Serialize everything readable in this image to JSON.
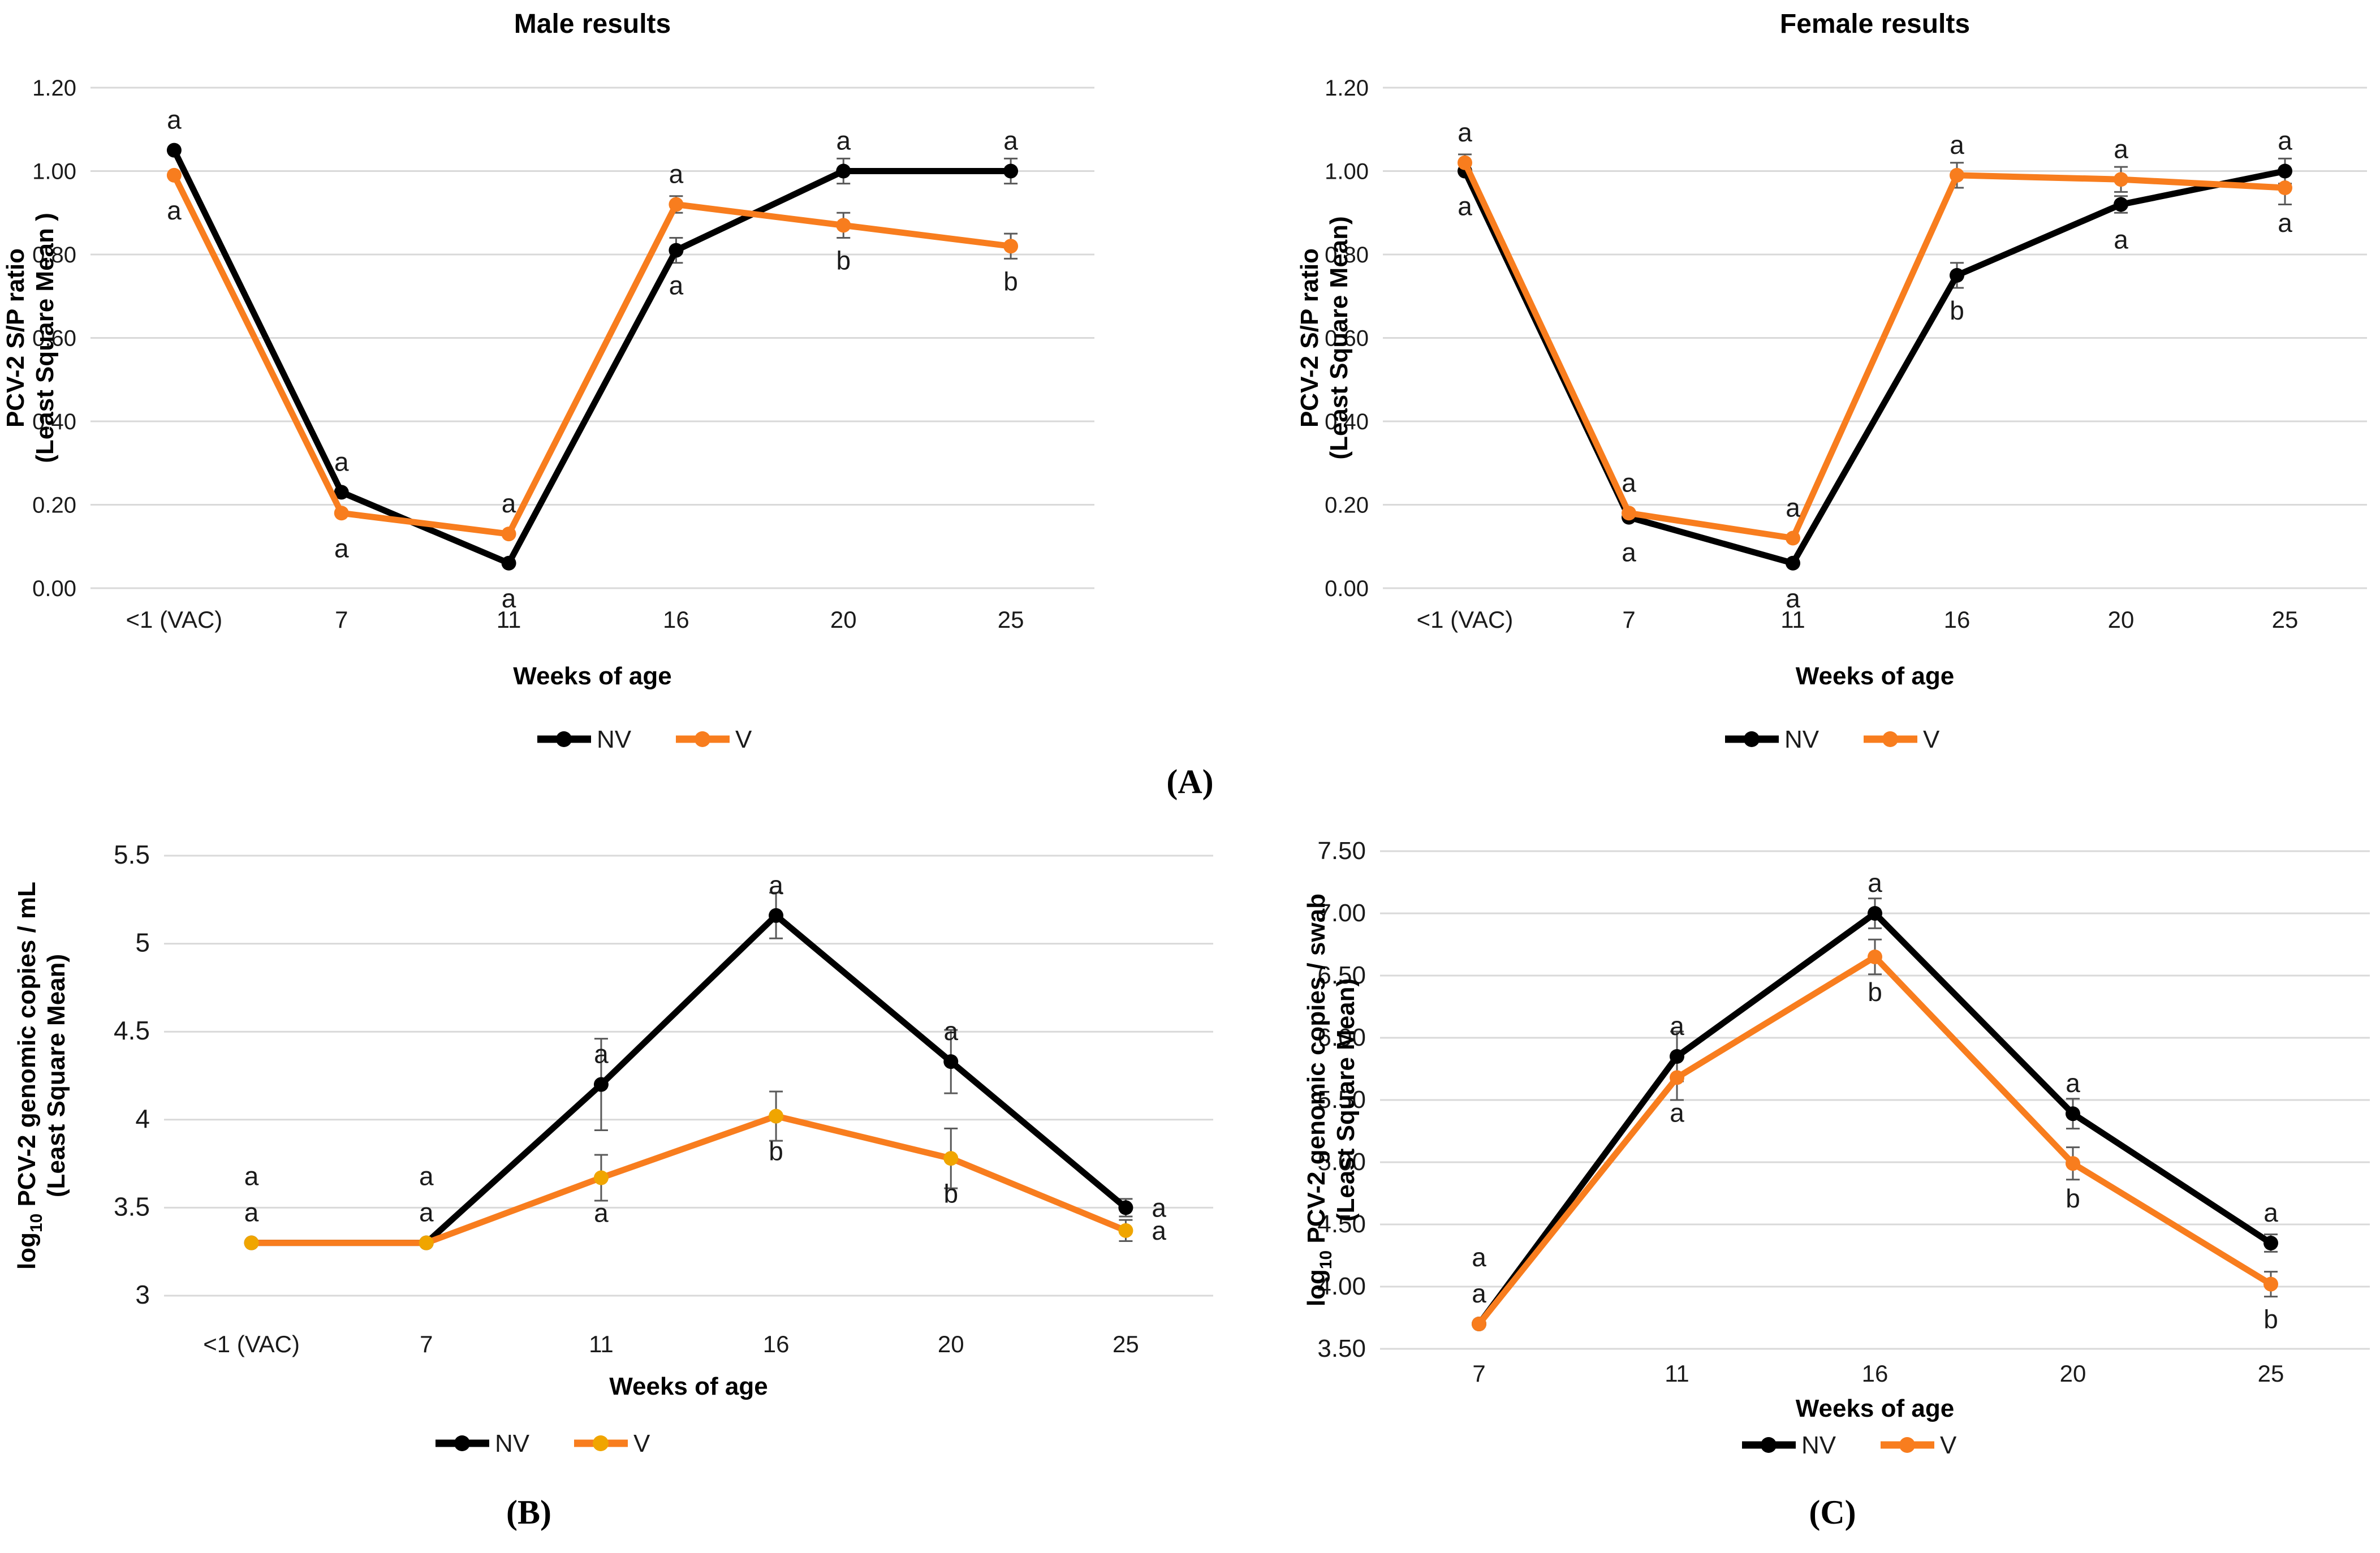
{
  "panel_labels": {
    "a": "(A)",
    "b": "(B)",
    "c": "(C)"
  },
  "colors": {
    "nv": "#000000",
    "v_orange": "#F87D1E",
    "v_gold_marker": "#F0A500",
    "grid": "#D9D9D9",
    "error_bar": "#595959",
    "text": "#1a1a1a"
  },
  "chart_data": [
    {
      "id": "male",
      "type": "line",
      "title": "Male results",
      "xlabel": "Weeks of age",
      "ylabel": {
        "prefix": "PCV-2 S/P ratio",
        "sub": "",
        "rest": "",
        "line2": "(Least Square Mean )"
      },
      "categories": [
        "<1 (VAC)",
        "7",
        "11",
        "16",
        "20",
        "25"
      ],
      "ylim": [
        0,
        1.2
      ],
      "ytick_labels": [
        "1.20",
        "1.00",
        "0.80",
        "0.60",
        "0.40",
        "0.20",
        "0.00"
      ],
      "grid": true,
      "legend_position": "bottom",
      "series": [
        {
          "name": "NV",
          "color": "#000000",
          "marker_color": "#000000",
          "values": [
            1.05,
            0.23,
            0.06,
            0.81,
            1.0,
            1.0
          ],
          "errors": [
            0,
            0,
            0,
            0.03,
            0.03,
            0.03
          ],
          "point_labels": [
            "a",
            "a",
            "a",
            "a",
            "a",
            "a"
          ],
          "label_sides": [
            "above",
            "above",
            "below",
            "below",
            "above",
            "above"
          ]
        },
        {
          "name": "V",
          "color": "#F87D1E",
          "marker_color": "#F87D1E",
          "values": [
            0.99,
            0.18,
            0.13,
            0.92,
            0.87,
            0.82
          ],
          "errors": [
            0,
            0,
            0,
            0.02,
            0.03,
            0.03
          ],
          "point_labels": [
            "a",
            "a",
            "a",
            "a",
            "b",
            "b"
          ],
          "label_sides": [
            "below",
            "below",
            "above",
            "above",
            "below",
            "below"
          ]
        }
      ]
    },
    {
      "id": "female",
      "type": "line",
      "title": "Female results",
      "xlabel": "Weeks of age",
      "ylabel": {
        "prefix": "PCV-2 S/P ratio",
        "sub": "",
        "rest": "",
        "line2": "(Least Square Mean)"
      },
      "categories": [
        "<1 (VAC)",
        "7",
        "11",
        "16",
        "20",
        "25"
      ],
      "ylim": [
        0,
        1.2
      ],
      "ytick_labels": [
        "1.20",
        "1.00",
        "0.80",
        "0.60",
        "0.40",
        "0.20",
        "0.00"
      ],
      "grid": true,
      "legend_position": "bottom",
      "series": [
        {
          "name": "NV",
          "color": "#000000",
          "marker_color": "#000000",
          "values": [
            1.0,
            0.17,
            0.06,
            0.75,
            0.92,
            1.0
          ],
          "errors": [
            0,
            0,
            0,
            0.03,
            0.02,
            0.03
          ],
          "point_labels": [
            "a",
            "a",
            "a",
            "b",
            "a",
            "a"
          ],
          "label_sides": [
            "below",
            "below",
            "below",
            "below",
            "below",
            "above"
          ]
        },
        {
          "name": "V",
          "color": "#F87D1E",
          "marker_color": "#F87D1E",
          "values": [
            1.02,
            0.18,
            0.12,
            0.99,
            0.98,
            0.96
          ],
          "errors": [
            0.02,
            0,
            0,
            0.03,
            0.03,
            0.04
          ],
          "point_labels": [
            "a",
            "a",
            "a",
            "a",
            "a",
            "a"
          ],
          "label_sides": [
            "above",
            "above",
            "above",
            "above",
            "above",
            "below"
          ]
        }
      ]
    },
    {
      "id": "viremia",
      "type": "line",
      "title": "",
      "xlabel": "Weeks of age",
      "ylabel": {
        "prefix": "log",
        "sub": "10",
        "rest": " PCV-2 genomic copies / mL",
        "line2": "(Least Square Mean)"
      },
      "categories": [
        "<1 (VAC)",
        "7",
        "11",
        "16",
        "20",
        "25"
      ],
      "ylim": [
        3,
        5.5
      ],
      "ytick_labels": [
        "5.5",
        "5",
        "4.5",
        "4",
        "3.5",
        "3"
      ],
      "grid": true,
      "legend_position": "bottom",
      "series": [
        {
          "name": "NV",
          "color": "#000000",
          "marker_color": "#000000",
          "values": [
            3.3,
            3.3,
            4.2,
            5.16,
            4.33,
            3.5
          ],
          "errors": [
            0,
            0,
            0.26,
            0.13,
            0.18,
            0.05
          ],
          "point_labels": [
            "a",
            "a",
            "a",
            "a",
            "a",
            "a"
          ],
          "label_sides": [
            "above2",
            "above2",
            "above",
            "above",
            "above",
            "right"
          ]
        },
        {
          "name": "V",
          "color": "#F87D1E",
          "marker_color": "#F0A500",
          "values": [
            3.3,
            3.3,
            3.67,
            4.02,
            3.78,
            3.37
          ],
          "errors": [
            0,
            0,
            0.13,
            0.14,
            0.17,
            0.06
          ],
          "point_labels": [
            "a",
            "a",
            "a",
            "b",
            "b",
            "a"
          ],
          "label_sides": [
            "above",
            "above",
            "below",
            "below",
            "below",
            "right"
          ]
        }
      ]
    },
    {
      "id": "shedding",
      "type": "line",
      "title": "",
      "xlabel": "Weeks of age",
      "ylabel": {
        "prefix": "log",
        "sub": "10",
        "rest": " PCV-2 genomic copies / swab",
        "line2": "(Least Square Mean)"
      },
      "categories": [
        "7",
        "11",
        "16",
        "20",
        "25"
      ],
      "ylim": [
        3.5,
        7.5
      ],
      "ytick_labels": [
        "7.50",
        "7.00",
        "6.50",
        "6.00",
        "5.50",
        "5.00",
        "4.50",
        "4.00",
        "3.50"
      ],
      "grid": true,
      "legend_position": "bottom",
      "series": [
        {
          "name": "NV",
          "color": "#000000",
          "marker_color": "#000000",
          "values": [
            3.7,
            5.85,
            7.0,
            5.39,
            4.35
          ],
          "errors": [
            0,
            0.2,
            0.12,
            0.12,
            0.07
          ],
          "point_labels": [
            "a",
            "a",
            "a",
            "a",
            "a"
          ],
          "label_sides": [
            "above2",
            "above",
            "above",
            "above",
            "above"
          ]
        },
        {
          "name": "V",
          "color": "#F87D1E",
          "marker_color": "#F87D1E",
          "values": [
            3.7,
            5.68,
            6.65,
            4.99,
            4.02
          ],
          "errors": [
            0,
            0.18,
            0.14,
            0.13,
            0.1
          ],
          "point_labels": [
            "a",
            "a",
            "b",
            "b",
            "b"
          ],
          "label_sides": [
            "above",
            "below",
            "below",
            "below",
            "below"
          ]
        }
      ]
    }
  ]
}
